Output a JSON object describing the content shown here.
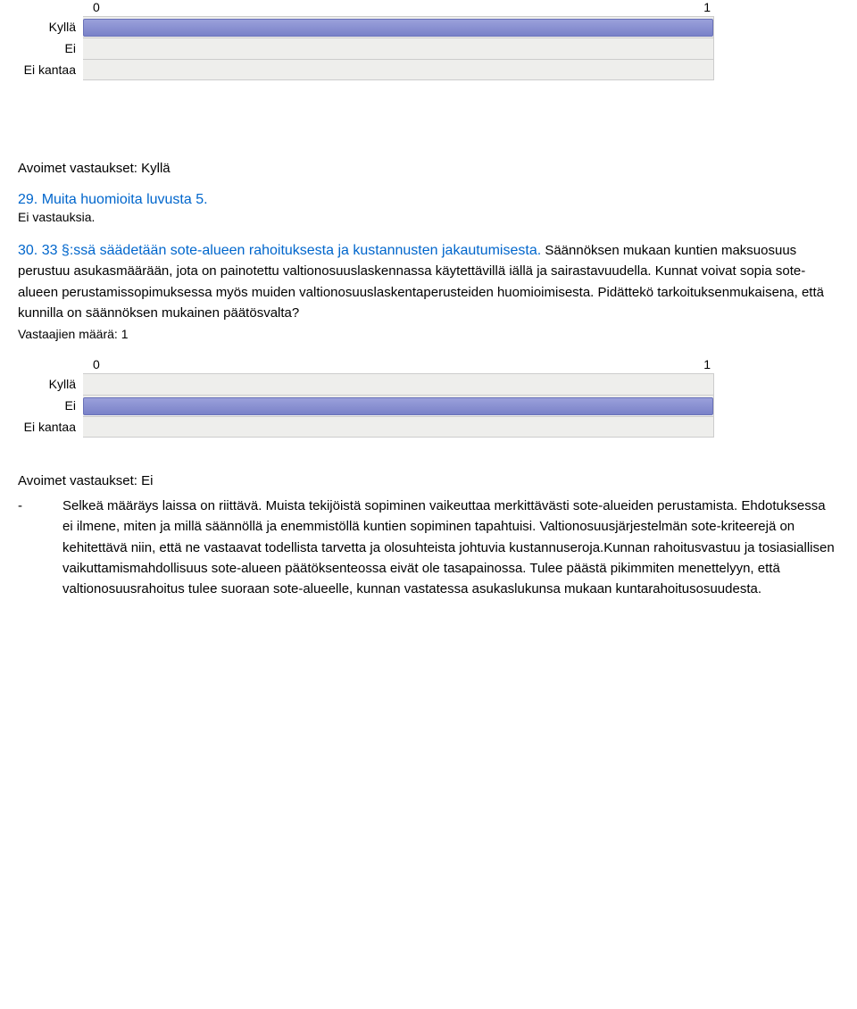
{
  "chart1": {
    "axis_min": "0",
    "axis_max": "1",
    "bar_color": "#7a82c9",
    "track_color": "#eeeeec",
    "rows": [
      {
        "label": "Kyllä",
        "value": 1
      },
      {
        "label": "Ei",
        "value": 0
      },
      {
        "label": "Ei kantaa",
        "value": 0
      }
    ]
  },
  "open1": {
    "label": "Avoimet vastaukset: Kyllä"
  },
  "q29": {
    "heading": "29. Muita huomioita luvusta 5.",
    "sub": "Ei vastauksia."
  },
  "q30": {
    "heading": "30. 33 §:ssä säädetään sote-alueen rahoituksesta ja kustannusten jakautumisesta.",
    "body": "Säännöksen mukaan kuntien maksuosuus perustuu asukasmäärään, jota on painotettu valtionosuuslaskennassa käytettävillä iällä ja sairastavuudella. Kunnat voivat sopia sote-alueen perustamissopimuksessa myös muiden valtionosuuslaskentaperusteiden huomioimisesta. Pidättekö tarkoituksenmukaisena, että kunnilla on säännöksen mukainen päätösvalta?",
    "sub": "Vastaajien määrä: 1"
  },
  "chart2": {
    "axis_min": "0",
    "axis_max": "1",
    "bar_color": "#7a82c9",
    "track_color": "#eeeeec",
    "rows": [
      {
        "label": "Kyllä",
        "value": 0
      },
      {
        "label": "Ei",
        "value": 1
      },
      {
        "label": "Ei kantaa",
        "value": 0
      }
    ]
  },
  "open2": {
    "label": "Avoimet vastaukset: Ei",
    "dash": "-",
    "answer": "Selkeä määräys laissa on riittävä. Muista tekijöistä sopiminen vaikeuttaa merkittävästi sote-alueiden perustamista. Ehdotuksessa ei ilmene, miten ja millä säännöllä ja enemmistöllä kuntien sopiminen tapahtuisi. Valtionosuusjärjestelmän sote-kriteerejä on kehitettävä niin, että ne vastaavat todellista tarvetta ja olosuhteista johtuvia kustannuseroja.Kunnan rahoitusvastuu ja tosiasiallisen vaikuttamismahdollisuus sote-alueen päätöksenteossa eivät ole tasapainossa. Tulee päästä pikimmiten menettelyyn, että valtionosuusrahoitus tulee suoraan sote-alueelle, kunnan vastatessa asukaslukunsa mukaan kuntarahoitusosuudesta."
  }
}
